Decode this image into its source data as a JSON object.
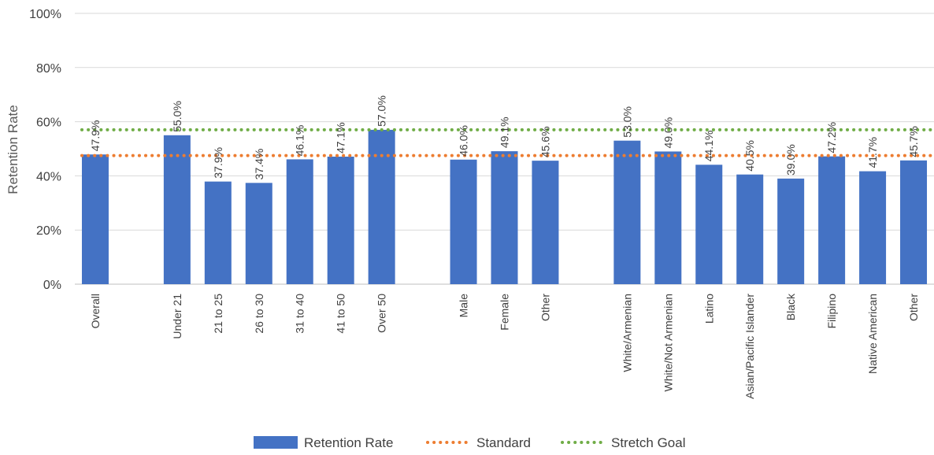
{
  "chart_data": {
    "type": "bar",
    "title": "",
    "xlabel": "",
    "ylabel": "Retention Rate",
    "ylim": [
      0,
      100
    ],
    "yticks": [
      "0%",
      "20%",
      "40%",
      "60%",
      "80%",
      "100%"
    ],
    "grid": true,
    "legend_position": "bottom",
    "categories": [
      "Overall",
      "",
      "Under 21",
      "21 to 25",
      "26 to 30",
      "31 to 40",
      "41 to 50",
      "Over 50",
      "",
      "Male",
      "Female",
      "Other",
      "",
      "White/Armenian",
      "White/Not Armenian",
      "Latino",
      "Asian/Pacific Islander",
      "Black",
      "Filipino",
      "Native American",
      "Other"
    ],
    "series": [
      {
        "name": "Retention Rate",
        "kind": "bar",
        "color": "#4472C4",
        "values": [
          47.9,
          null,
          55.0,
          37.9,
          37.4,
          46.1,
          47.1,
          57.0,
          null,
          46.0,
          49.1,
          45.6,
          null,
          53.0,
          49.0,
          44.1,
          40.5,
          39.0,
          47.2,
          41.7,
          45.7
        ],
        "labels": [
          "47.9%",
          "",
          "55.0%",
          "37.9%",
          "37.4%",
          "46.1%",
          "47.1%",
          "57.0%",
          "",
          "46.0%",
          "49.1%",
          "45.6%",
          "",
          "53.0%",
          "49.0%",
          "44.1%",
          "40.5%",
          "39.0%",
          "47.2%",
          "41.7%",
          "45.7%"
        ]
      },
      {
        "name": "Standard",
        "kind": "line",
        "style": "dotted",
        "color": "#ED7D31",
        "value": 47.5
      },
      {
        "name": "Stretch Goal",
        "kind": "line",
        "style": "dotted",
        "color": "#70AD47",
        "value": 57.0
      }
    ]
  }
}
